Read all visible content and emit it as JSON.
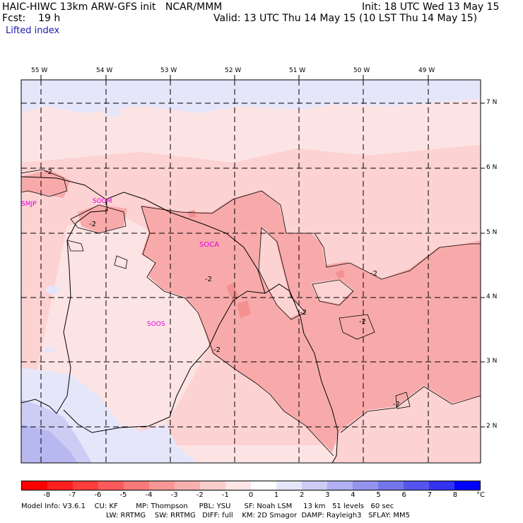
{
  "header": {
    "model_line": "HAIC-HIWC 13km ARW-GFS init   NCAR/MMM",
    "fcst_line": "Fcst:    19 h",
    "field": "Lifted index",
    "init": "Init: 18 UTC Wed 13 May 15",
    "valid": "Valid: 13 UTC Thu 14 May 15 (10 LST Thu 14 May 15)"
  },
  "map": {
    "longitudes": [
      "55 W",
      "54 W",
      "53 W",
      "52 W",
      "51 W",
      "50 W",
      "49 W"
    ],
    "latitudes": [
      "7 N",
      "6 N",
      "5 N",
      "4 N",
      "3 N",
      "2 N"
    ],
    "places": [
      "SMJP",
      "SOCA",
      "SOOS"
    ],
    "contour_labels": [
      "-2",
      "-2",
      "-2",
      "-2",
      "-2",
      "-2",
      "-2",
      "-2"
    ],
    "colors": {
      "background_weak": "#fde4e4",
      "pink_1": "#fcd2d2",
      "pink_2": "#f8aaaa",
      "pink_3": "#f39090",
      "blue_1": "#e6e6fb",
      "blue_2": "#ccccf5",
      "blue_3": "#b8b8f0",
      "border": "#000000"
    }
  },
  "legend": {
    "ticks": [
      "-8",
      "-7",
      "-6",
      "-5",
      "-4",
      "-3",
      "-2",
      "-1",
      "0",
      "1",
      "2",
      "3",
      "4",
      "5",
      "6",
      "7",
      "8"
    ],
    "unit": "°C",
    "colors": [
      "#ff0000",
      "#ff1f1f",
      "#ff3d3d",
      "#fd5b5b",
      "#fa7979",
      "#f79595",
      "#f6b0b0",
      "#f9cccc",
      "#fce6e6",
      "#ffffff",
      "#e6e6fb",
      "#ccccf5",
      "#b0b0f2",
      "#9494ee",
      "#7575ea",
      "#5555ee",
      "#3333f0",
      "#0000ff"
    ]
  },
  "footer": {
    "line1": "Model Info: V3.6.1    CU: KF        MP: Thompson     PBL: YSU      SF: Noah LSM     13 km   51 levels   60 sec",
    "line2": "LW: RRTMG    SW: RRTMG   DIFF: full    KM: 2D Smagor  DAMP: Rayleigh3   SFLAY: MM5"
  }
}
